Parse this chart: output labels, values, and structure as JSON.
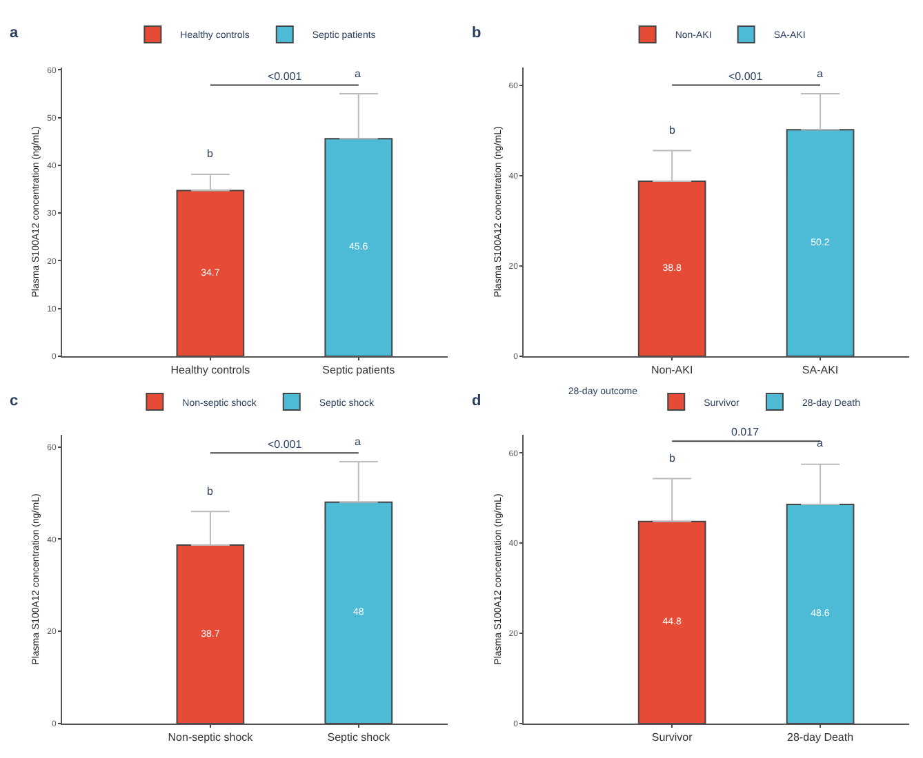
{
  "chart_data": [
    {
      "type": "bar",
      "title": "a",
      "ylabel": "Plasma S100A12 concentration (ng/mL)",
      "categories": [
        "Healthy controls",
        "Septic patients"
      ],
      "ylim": [
        0,
        60.5
      ],
      "yticks": [
        0,
        10,
        20,
        30,
        40,
        50,
        60
      ],
      "data_labels": true,
      "legend": "top",
      "grid": false,
      "series": [
        {
          "name": "Healthy controls",
          "color": "#e64b35",
          "values": [
            34.7,
            null
          ],
          "errors": [
            [
              34.7,
              38.1
            ],
            null
          ]
        },
        {
          "name": "Septic patients",
          "color": "#4dbbd5",
          "values": [
            null,
            45.6
          ],
          "errors": [
            null,
            [
              45.6,
              55.0
            ]
          ]
        }
      ],
      "annotations": [
        "<0.001",
        "b",
        "a"
      ]
    },
    {
      "type": "bar",
      "title": "b",
      "ylabel": "Plasma S100A12 concentration (ng/mL)",
      "categories": [
        "Non-AKI",
        "SA-AKI"
      ],
      "ylim": [
        0,
        64
      ],
      "yticks": [
        0,
        20,
        40,
        60
      ],
      "data_labels": true,
      "legend": "top",
      "grid": false,
      "series": [
        {
          "name": "Non-AKI",
          "color": "#e64b35",
          "values": [
            38.8,
            null
          ],
          "errors": [
            [
              38.8,
              45.6
            ],
            null
          ]
        },
        {
          "name": "SA-AKI",
          "color": "#4dbbd5",
          "values": [
            null,
            50.2
          ],
          "errors": [
            null,
            [
              50.2,
              58.2
            ]
          ]
        }
      ],
      "annotations": [
        "<0.001",
        "b",
        "a"
      ]
    },
    {
      "type": "bar",
      "title": "c",
      "ylabel": "Plasma S100A12 concentration (ng/mL)",
      "categories": [
        "Non-septic shock",
        "Septic shock"
      ],
      "ylim": [
        0,
        62.6
      ],
      "yticks": [
        0,
        20,
        40,
        60
      ],
      "data_labels": true,
      "legend": "top",
      "grid": false,
      "series": [
        {
          "name": "Non-septic shock",
          "color": "#e64b35",
          "values": [
            38.7,
            null
          ],
          "errors": [
            [
              38.7,
              46.0
            ],
            null
          ]
        },
        {
          "name": "Septic shock",
          "color": "#4dbbd5",
          "values": [
            null,
            48
          ],
          "errors": [
            null,
            [
              48,
              56.8
            ]
          ]
        }
      ],
      "annotations": [
        "<0.001",
        "b",
        "a"
      ]
    },
    {
      "type": "bar",
      "title": "d",
      "ylabel": "Plasma S100A12 concentration (ng/mL)",
      "legend_title": "28-day outcome",
      "categories": [
        "Survivor",
        "28-day Death"
      ],
      "ylim": [
        0,
        64
      ],
      "yticks": [
        0,
        20,
        40,
        60
      ],
      "data_labels": true,
      "legend": "top",
      "grid": false,
      "series": [
        {
          "name": "Survivor",
          "color": "#e64b35",
          "values": [
            44.8,
            null
          ],
          "errors": [
            [
              44.8,
              54.3
            ],
            null
          ]
        },
        {
          "name": "28-day Death",
          "color": "#4dbbd5",
          "values": [
            null,
            48.6
          ],
          "errors": [
            null,
            [
              48.6,
              57.5
            ]
          ]
        }
      ],
      "annotations": [
        "0.017",
        "b",
        "a"
      ]
    }
  ]
}
